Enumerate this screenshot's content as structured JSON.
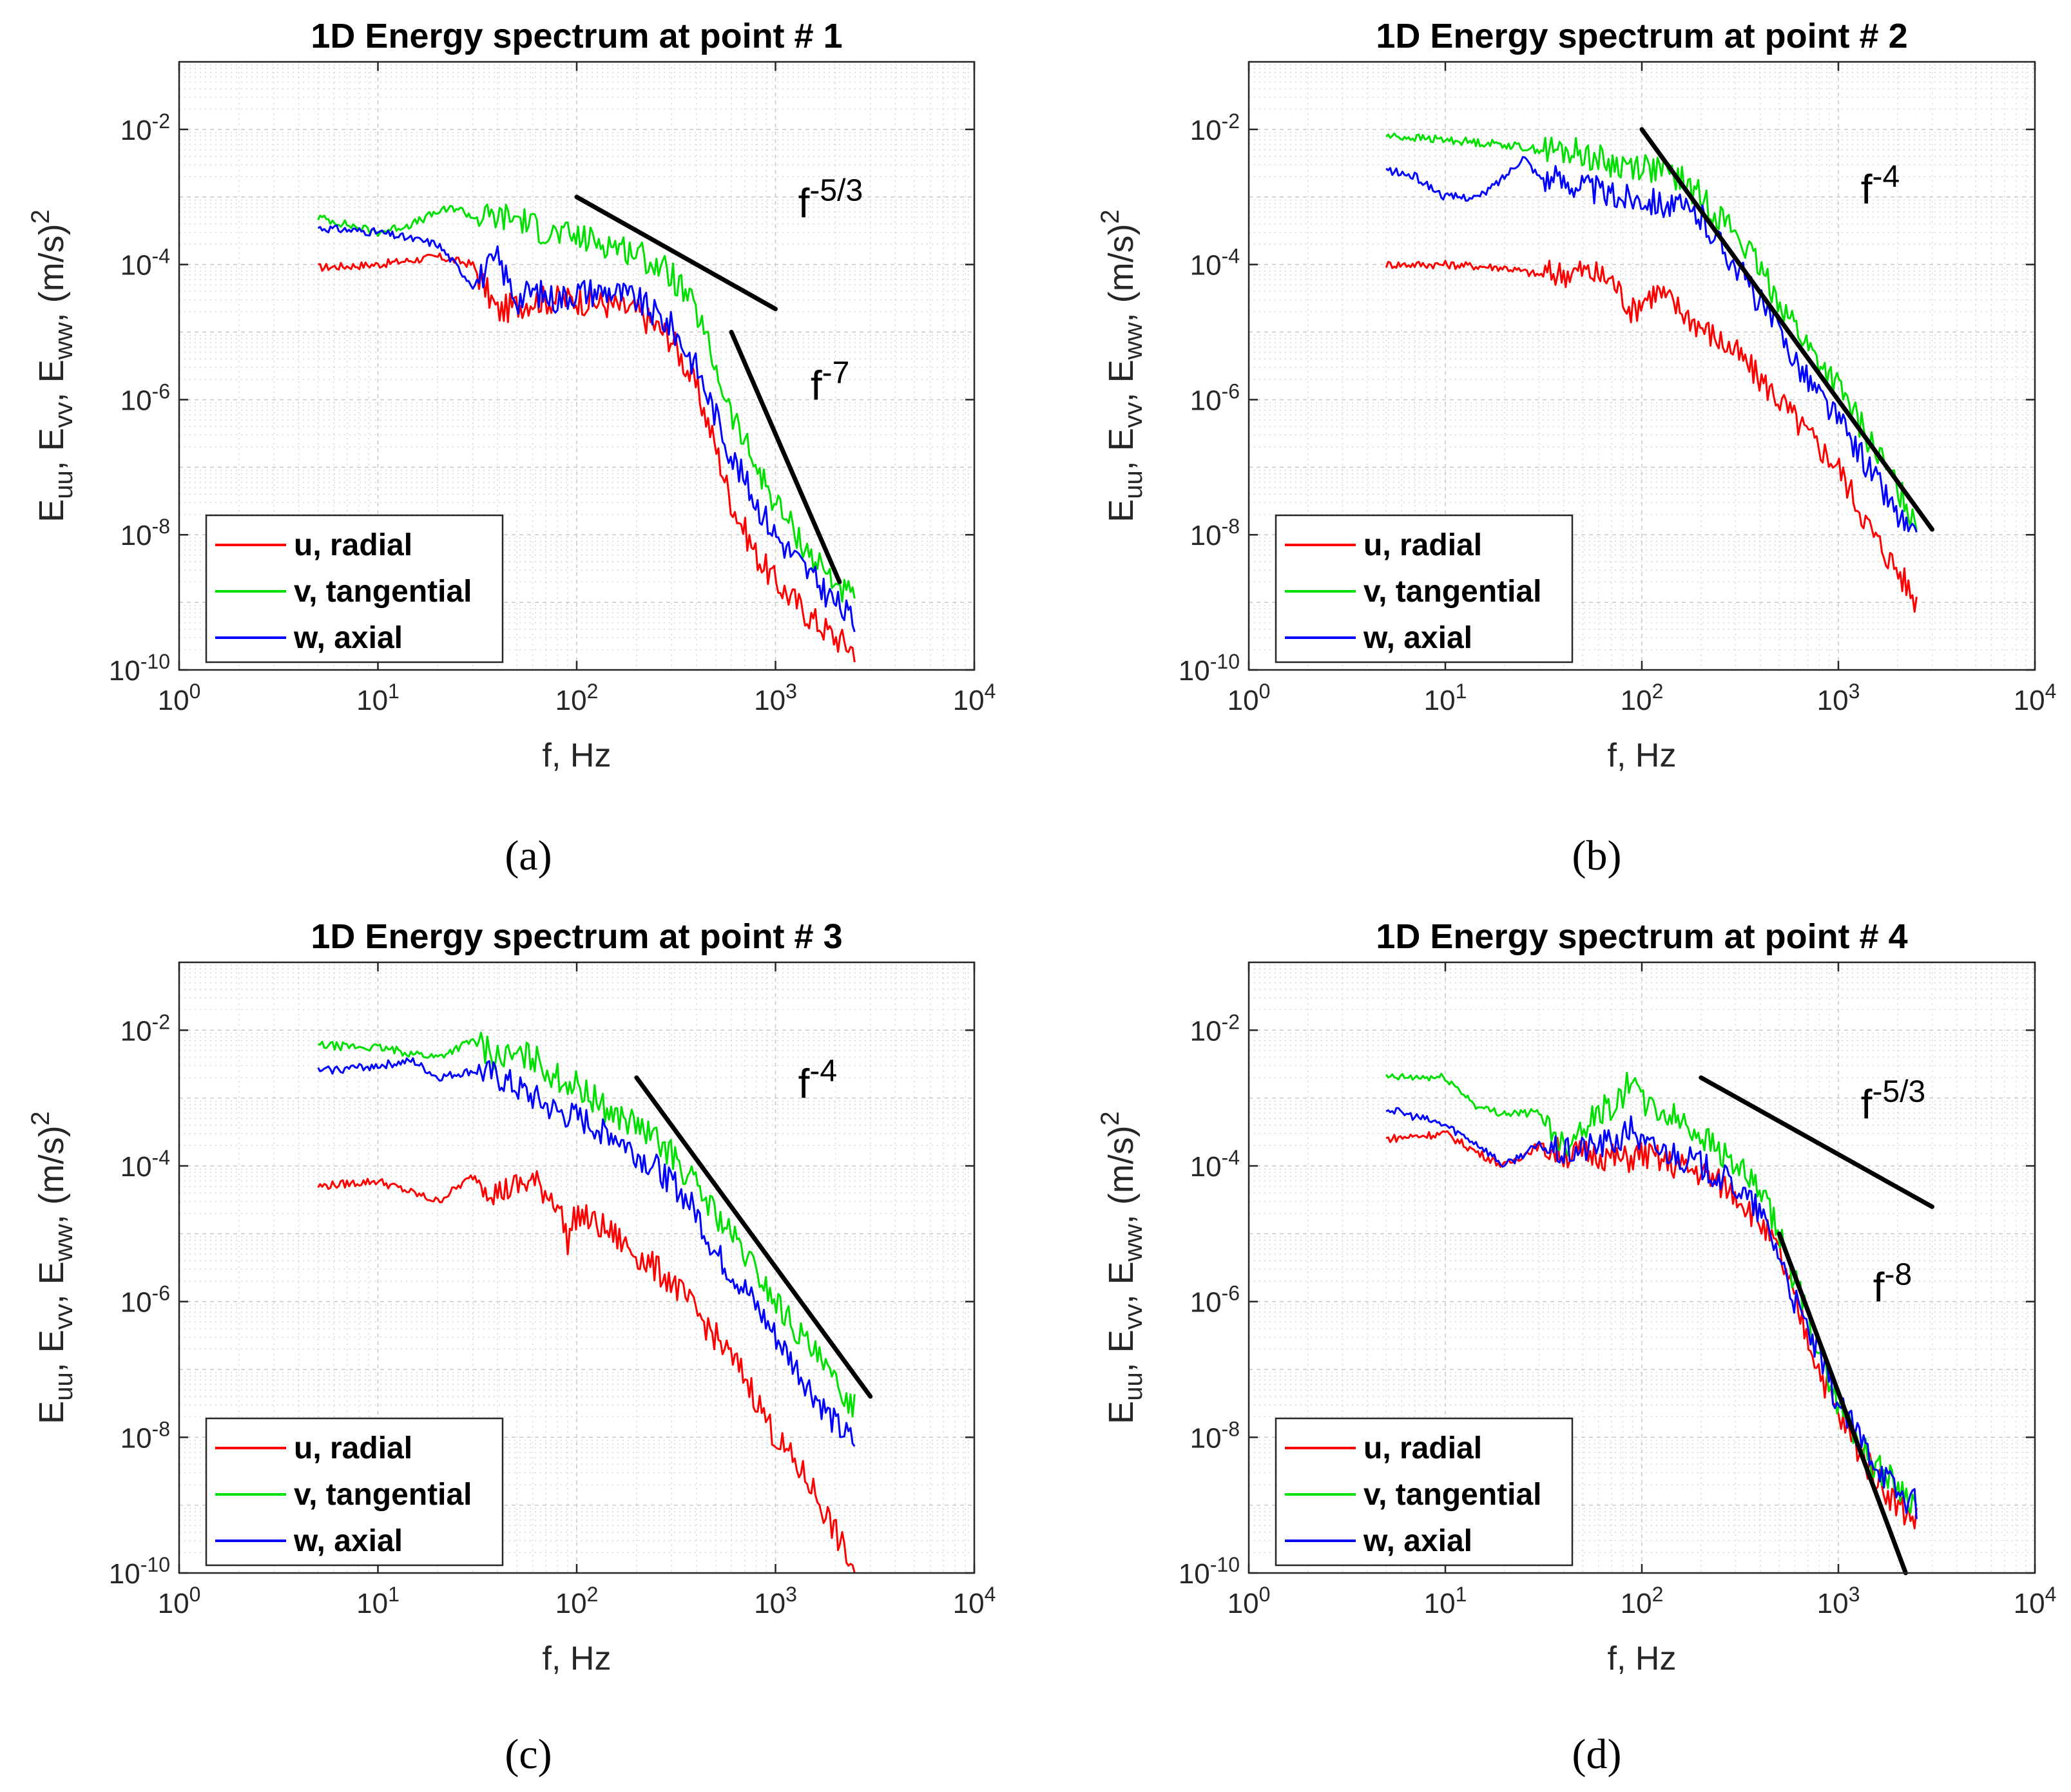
{
  "figure": {
    "panels": [
      {
        "caption": "(a)"
      },
      {
        "caption": "(b)"
      },
      {
        "caption": "(c)"
      },
      {
        "caption": "(d)"
      }
    ]
  },
  "colors": {
    "u": "#ff0000",
    "v": "#00e000",
    "w": "#0000ff",
    "slope": "#000000",
    "frame": "#262626",
    "grid": "#c8c8c8"
  },
  "chart_data": [
    {
      "type": "line",
      "title": "1D Energy spectrum  at point # 1",
      "xlabel": "f, Hz",
      "ylabel": "E_uu, E_vv, E_ww, (m/s)^2",
      "xscale": "log",
      "yscale": "log",
      "xlim": [
        1,
        10000
      ],
      "ylim": [
        1e-10,
        0.1
      ],
      "xticks": [
        "10^0",
        "10^1",
        "10^2",
        "10^3",
        "10^4"
      ],
      "yticks": [
        "10^-10",
        "10^-8",
        "10^-6",
        "10^-4",
        "10^-2"
      ],
      "grid": true,
      "legend": {
        "position": "bottom-left",
        "entries": [
          "u, radial",
          "v, tangential",
          "w, axial"
        ]
      },
      "series": [
        {
          "name": "u, radial",
          "color": "red",
          "x": [
            5,
            10,
            20,
            30,
            40,
            60,
            80,
            100,
            150,
            200,
            300,
            400,
            500,
            600,
            800,
            1000,
            1500,
            2000,
            2500
          ],
          "y": [
            9e-05,
            0.0001,
            0.00013,
            0.0001,
            2e-05,
            3e-05,
            3e-05,
            3e-05,
            2.5e-05,
            2e-05,
            8e-06,
            1.5e-06,
            2e-07,
            3e-08,
            5e-09,
            2e-09,
            6e-10,
            3e-10,
            2e-10
          ]
        },
        {
          "name": "v, tangential",
          "color": "green",
          "x": [
            5,
            10,
            15,
            20,
            25,
            30,
            50,
            70,
            100,
            150,
            200,
            300,
            400,
            500,
            600,
            800,
            1000,
            1500,
            2000,
            2500
          ],
          "y": [
            0.0005,
            0.0003,
            0.0004,
            0.0006,
            0.0007,
            0.0005,
            0.0005,
            0.0003,
            0.00025,
            0.0002,
            0.00015,
            7e-05,
            2e-05,
            3e-06,
            6e-07,
            1e-07,
            3e-08,
            5e-09,
            2e-09,
            1e-09
          ]
        },
        {
          "name": "w, axial",
          "color": "blue",
          "x": [
            5,
            10,
            20,
            30,
            40,
            50,
            60,
            80,
            100,
            150,
            200,
            300,
            400,
            500,
            600,
            800,
            1000,
            1500,
            2000,
            2500
          ],
          "y": [
            0.00035,
            0.0003,
            0.0002,
            5e-05,
            0.00012,
            3e-05,
            4e-05,
            3e-05,
            4e-05,
            4e-05,
            3e-05,
            1.2e-05,
            3e-06,
            6e-07,
            1.5e-07,
            3e-08,
            1e-08,
            2.5e-09,
            1e-09,
            5e-10
          ]
        }
      ],
      "slope_lines": [
        {
          "x": [
            100,
            1000
          ],
          "y": [
            0.001,
            2.2e-05
          ]
        },
        {
          "x": [
            600,
            2100
          ],
          "y": [
            1e-05,
            2e-09
          ]
        }
      ],
      "annotations": [
        {
          "base": "f",
          "exponent": "-5/3",
          "x": 1300,
          "y": 0.0005
        },
        {
          "base": "f",
          "exponent": "-7",
          "x": 1500,
          "y": 1e-06
        }
      ]
    },
    {
      "type": "line",
      "title": "1D Energy spectrum  at point # 2",
      "xlabel": "f, Hz",
      "ylabel": "E_uu, E_vv, E_ww, (m/s)^2",
      "xscale": "log",
      "yscale": "log",
      "xlim": [
        1,
        10000
      ],
      "ylim": [
        1e-10,
        0.1
      ],
      "xticks": [
        "10^0",
        "10^1",
        "10^2",
        "10^3",
        "10^4"
      ],
      "yticks": [
        "10^-10",
        "10^-8",
        "10^-6",
        "10^-4",
        "10^-2"
      ],
      "grid": true,
      "legend": {
        "position": "bottom-left",
        "entries": [
          "u, radial",
          "v, tangential",
          "w, axial"
        ]
      },
      "series": [
        {
          "name": "u, radial",
          "color": "red",
          "x": [
            5,
            10,
            20,
            30,
            50,
            70,
            90,
            100,
            120,
            200,
            300,
            500,
            700,
            1000,
            1500,
            2000,
            2500
          ],
          "y": [
            0.0001,
            0.0001,
            9e-05,
            7e-05,
            8e-05,
            6e-05,
            2e-05,
            3e-05,
            4e-05,
            1.2e-05,
            5e-06,
            1e-06,
            3e-07,
            1e-07,
            1e-08,
            3e-09,
            1e-09
          ]
        },
        {
          "name": "v, tangential",
          "color": "green",
          "x": [
            5,
            10,
            20,
            30,
            50,
            70,
            100,
            150,
            200,
            300,
            500,
            700,
            1000,
            1500,
            2000,
            2500
          ],
          "y": [
            0.008,
            0.007,
            0.006,
            0.005,
            0.0045,
            0.003,
            0.003,
            0.002,
            0.001,
            0.0003,
            3e-05,
            6e-06,
            1.5e-06,
            2e-07,
            5e-08,
            1.5e-08
          ]
        },
        {
          "name": "w, axial",
          "color": "blue",
          "x": [
            5,
            7,
            10,
            15,
            20,
            25,
            30,
            50,
            70,
            100,
            150,
            200,
            300,
            500,
            700,
            1000,
            1500,
            2000,
            2500
          ],
          "y": [
            0.0025,
            0.002,
            0.001,
            0.001,
            0.002,
            0.004,
            0.002,
            0.0015,
            0.001,
            0.001,
            0.0007,
            0.0005,
            0.0001,
            1e-05,
            2e-06,
            5e-07,
            8e-08,
            2e-08,
            8e-09
          ]
        }
      ],
      "slope_lines": [
        {
          "x": [
            100,
            3000
          ],
          "y": [
            0.01,
            1.2e-08
          ]
        }
      ],
      "annotations": [
        {
          "base": "f",
          "exponent": "-4",
          "x": 1300,
          "y": 0.0008
        }
      ]
    },
    {
      "type": "line",
      "title": "1D Energy spectrum  at point # 3",
      "xlabel": "f, Hz",
      "ylabel": "E_uu, E_vv, E_ww, (m/s)^2",
      "xscale": "log",
      "yscale": "log",
      "xlim": [
        1,
        10000
      ],
      "ylim": [
        1e-10,
        0.1
      ],
      "xticks": [
        "10^0",
        "10^1",
        "10^2",
        "10^3",
        "10^4"
      ],
      "yticks": [
        "10^-10",
        "10^-8",
        "10^-6",
        "10^-4",
        "10^-2"
      ],
      "grid": true,
      "legend": {
        "position": "bottom-left",
        "entries": [
          "u, radial",
          "v, tangential",
          "w, axial"
        ]
      },
      "series": [
        {
          "name": "u, radial",
          "color": "red",
          "x": [
            5,
            10,
            20,
            30,
            40,
            60,
            80,
            90,
            100,
            150,
            200,
            300,
            500,
            700,
            1000,
            1500,
            2000,
            2500
          ],
          "y": [
            5e-05,
            6e-05,
            3e-05,
            7e-05,
            4e-05,
            6e-05,
            3e-05,
            8e-06,
            2e-05,
            1e-05,
            5e-06,
            2e-06,
            3e-07,
            8e-08,
            1e-08,
            2e-09,
            4e-10,
            1e-10
          ]
        },
        {
          "name": "v, tangential",
          "color": "green",
          "x": [
            5,
            10,
            20,
            30,
            40,
            60,
            80,
            100,
            150,
            200,
            300,
            400,
            500,
            700,
            1000,
            1500,
            2000,
            2500
          ],
          "y": [
            0.006,
            0.0055,
            0.004,
            0.007,
            0.004,
            0.004,
            0.002,
            0.0015,
            0.0006,
            0.0004,
            0.00015,
            5e-05,
            2e-05,
            5e-06,
            1e-06,
            2e-07,
            6e-08,
            3e-08
          ]
        },
        {
          "name": "w, axial",
          "color": "blue",
          "x": [
            5,
            10,
            15,
            20,
            30,
            40,
            60,
            80,
            100,
            150,
            200,
            300,
            400,
            500,
            700,
            1000,
            1500,
            2000,
            2500
          ],
          "y": [
            0.0025,
            0.003,
            0.0035,
            0.002,
            0.0025,
            0.002,
            0.001,
            0.0006,
            0.0005,
            0.0003,
            0.00015,
            6e-05,
            2e-05,
            5e-06,
            1.5e-06,
            3e-07,
            5e-08,
            1.5e-08,
            8e-09
          ]
        }
      ],
      "slope_lines": [
        {
          "x": [
            200,
            3000
          ],
          "y": [
            0.002,
            4e-08
          ]
        }
      ],
      "annotations": [
        {
          "base": "f",
          "exponent": "-4",
          "x": 1300,
          "y": 0.001
        }
      ]
    },
    {
      "type": "line",
      "title": "1D Energy spectrum  at point # 4",
      "xlabel": "f, Hz",
      "ylabel": "E_uu, E_vv, E_ww, (m/s)^2",
      "xscale": "log",
      "yscale": "log",
      "xlim": [
        1,
        10000
      ],
      "ylim": [
        1e-10,
        0.1
      ],
      "xticks": [
        "10^0",
        "10^1",
        "10^2",
        "10^3",
        "10^4"
      ],
      "yticks": [
        "10^-10",
        "10^-8",
        "10^-6",
        "10^-4",
        "10^-2"
      ],
      "grid": true,
      "legend": {
        "position": "bottom-left",
        "entries": [
          "u, radial",
          "v, tangential",
          "w, axial"
        ]
      },
      "series": [
        {
          "name": "u, radial",
          "color": "red",
          "x": [
            5,
            10,
            15,
            20,
            30,
            40,
            60,
            80,
            100,
            150,
            200,
            300,
            400,
            500,
            600,
            800,
            1000,
            1500,
            2000,
            2500
          ],
          "y": [
            0.00025,
            0.0003,
            0.00015,
            0.0001,
            0.0002,
            0.00015,
            0.00015,
            0.00012,
            0.00015,
            0.0001,
            8e-05,
            4e-05,
            1.5e-05,
            5e-06,
            1e-06,
            1e-07,
            2e-08,
            3e-09,
            1e-09,
            6e-10
          ]
        },
        {
          "name": "v, tangential",
          "color": "green",
          "x": [
            5,
            10,
            15,
            20,
            30,
            40,
            50,
            60,
            80,
            90,
            100,
            150,
            200,
            300,
            400,
            500,
            600,
            800,
            1000,
            1500,
            2000,
            2500
          ],
          "y": [
            0.002,
            0.002,
            0.0007,
            0.0006,
            0.0006,
            0.0002,
            0.0004,
            0.0006,
            0.001,
            0.0025,
            0.0008,
            0.0005,
            0.0003,
            0.0001,
            4e-05,
            1e-05,
            2e-06,
            2e-07,
            3e-08,
            4e-09,
            2e-09,
            1e-09
          ]
        },
        {
          "name": "w, axial",
          "color": "blue",
          "x": [
            5,
            10,
            15,
            20,
            25,
            30,
            40,
            60,
            80,
            90,
            100,
            150,
            200,
            300,
            400,
            500,
            600,
            800,
            1000,
            1500,
            2000,
            2500
          ],
          "y": [
            0.0007,
            0.0004,
            0.0002,
            0.0001,
            0.00015,
            0.0002,
            0.00015,
            0.0002,
            0.00025,
            0.0004,
            0.0002,
            0.00015,
            0.0001,
            5e-05,
            2e-05,
            5e-06,
            1e-06,
            1.5e-07,
            3e-08,
            5e-09,
            1.5e-09,
            1e-09
          ]
        }
      ],
      "slope_lines": [
        {
          "x": [
            200,
            3000
          ],
          "y": [
            0.002,
            2.5e-05
          ]
        },
        {
          "x": [
            500,
            2200
          ],
          "y": [
            1e-05,
            1e-10
          ]
        }
      ],
      "annotations": [
        {
          "base": "f",
          "exponent": "-5/3",
          "x": 1300,
          "y": 0.0005
        },
        {
          "base": "f",
          "exponent": "-8",
          "x": 1500,
          "y": 1e-06
        }
      ]
    }
  ]
}
